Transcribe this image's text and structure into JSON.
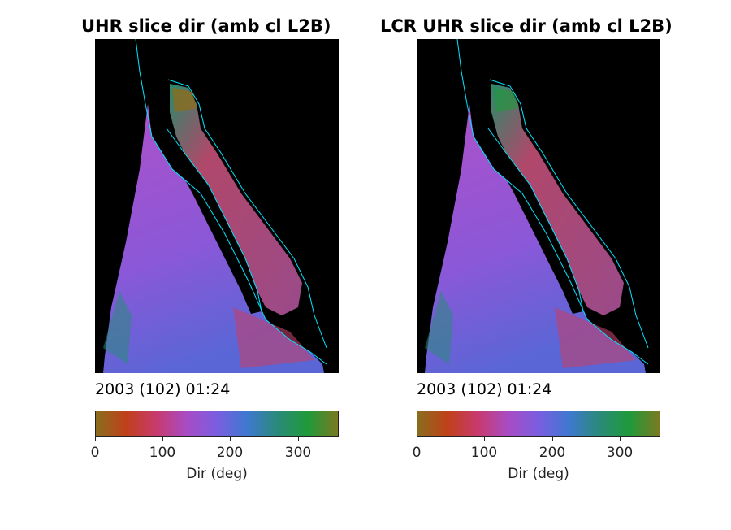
{
  "panels": [
    {
      "title": "UHR slice dir (amb cl L2B)",
      "timestamp": "2003 (102) 01:24",
      "colorbar": {
        "ticks": [
          "0",
          "100",
          "200",
          "300"
        ],
        "label": "Dir (deg)"
      }
    },
    {
      "title": "LCR UHR slice dir (amb cl L2B)",
      "timestamp": "2003 (102) 01:24",
      "colorbar": {
        "ticks": [
          "0",
          "100",
          "200",
          "300"
        ],
        "label": "Dir (deg)"
      }
    }
  ],
  "colormap": [
    "#8a6d1e",
    "#c0401a",
    "#c83a6e",
    "#a84cc4",
    "#7a5ee0",
    "#3f78d0",
    "#2a8a7a",
    "#1f9a3a",
    "#7a7a22"
  ],
  "colors": {
    "land_mask": "#000000",
    "coastline": "#00e5ff"
  }
}
